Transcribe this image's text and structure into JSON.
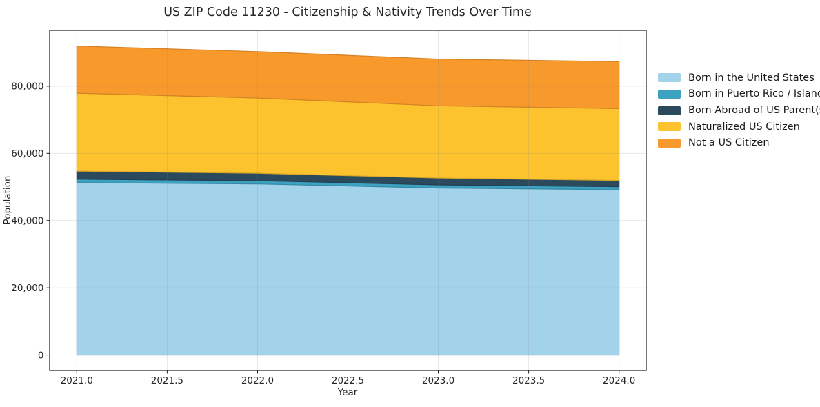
{
  "figure": {
    "background": "#ffffff"
  },
  "chart_data": {
    "type": "area",
    "stacked": true,
    "title": "US ZIP Code 11230 - Citizenship & Nativity Trends Over Time",
    "xlabel": "Year",
    "ylabel": "Population",
    "x": [
      2021,
      2022,
      2023,
      2024
    ],
    "series": [
      {
        "name": "Born in the United States",
        "color": "#A3D3EA",
        "values": [
          51300,
          50900,
          49700,
          49200
        ]
      },
      {
        "name": "Born in Puerto Rico / Islands",
        "color": "#3DA2C2",
        "values": [
          1000,
          960,
          920,
          880
        ]
      },
      {
        "name": "Born Abroad of US Parent(s)",
        "color": "#2B4A5E",
        "values": [
          2400,
          2220,
          2040,
          1850
        ]
      },
      {
        "name": "Naturalized US Citizen",
        "color": "#FDC32E",
        "values": [
          23200,
          22400,
          21500,
          21400
        ]
      },
      {
        "name": "Not a US Citizen",
        "color": "#F8992B",
        "values": [
          14050,
          13800,
          13900,
          13970
        ]
      }
    ],
    "totals_by_year": [
      91950,
      90280,
      88060,
      87300
    ],
    "xlim": [
      2020.85,
      2024.15
    ],
    "ylim": [
      -4600,
      96600
    ],
    "xticks": [
      2021.0,
      2021.5,
      2022.0,
      2022.5,
      2023.0,
      2023.5,
      2024.0
    ],
    "yticks": [
      0,
      20000,
      40000,
      60000,
      80000
    ],
    "grid": true,
    "legend_position": "right"
  }
}
